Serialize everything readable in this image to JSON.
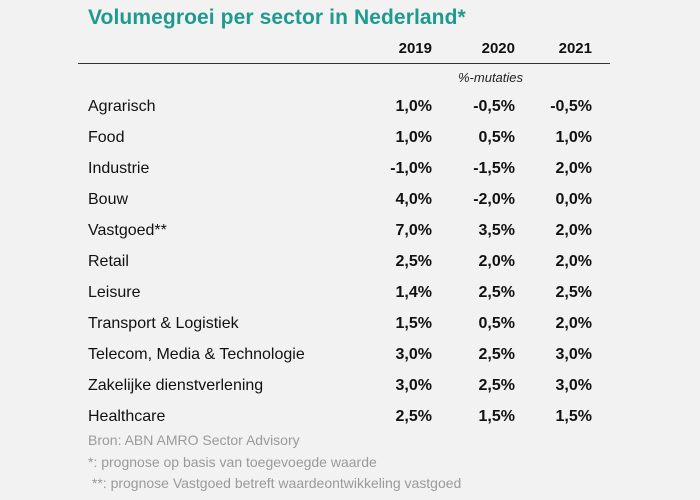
{
  "title": "Volumegroei per sector in Nederland*",
  "table": {
    "years": [
      "2019",
      "2020",
      "2021"
    ],
    "unit_label": "%-mutaties",
    "rows": [
      {
        "sector": "Agrarisch",
        "values": [
          "1,0%",
          "-0,5%",
          "-0,5%"
        ]
      },
      {
        "sector": "Food",
        "values": [
          "1,0%",
          "0,5%",
          "1,0%"
        ]
      },
      {
        "sector": "Industrie",
        "values": [
          "-1,0%",
          "-1,5%",
          "2,0%"
        ]
      },
      {
        "sector": "Bouw",
        "values": [
          "4,0%",
          "-2,0%",
          "0,0%"
        ]
      },
      {
        "sector": "Vastgoed**",
        "values": [
          "7,0%",
          "3,5%",
          "2,0%"
        ]
      },
      {
        "sector": "Retail",
        "values": [
          "2,5%",
          "2,0%",
          "2,0%"
        ]
      },
      {
        "sector": "Leisure",
        "values": [
          "1,4%",
          "2,5%",
          "2,5%"
        ]
      },
      {
        "sector": "Transport & Logistiek",
        "values": [
          "1,5%",
          "0,5%",
          "2,0%"
        ]
      },
      {
        "sector": "Telecom, Media & Technologie",
        "values": [
          "3,0%",
          "2,5%",
          "3,0%"
        ]
      },
      {
        "sector": "Zakelijke dienstverlening",
        "values": [
          "3,0%",
          "2,5%",
          "3,0%"
        ]
      },
      {
        "sector": "Healthcare",
        "values": [
          "2,5%",
          "1,5%",
          "1,5%"
        ]
      }
    ]
  },
  "footnotes": {
    "source": "Bron: ABN AMRO Sector Advisory",
    "note1": "*: prognose op basis van toegevoegde waarde",
    "note2": " **: prognose Vastgoed betreft waardeontwikkeling vastgoed"
  },
  "colors": {
    "title": "#1f9a8f",
    "background": "#f2f2f2",
    "footnote": "#9a9a9a"
  }
}
